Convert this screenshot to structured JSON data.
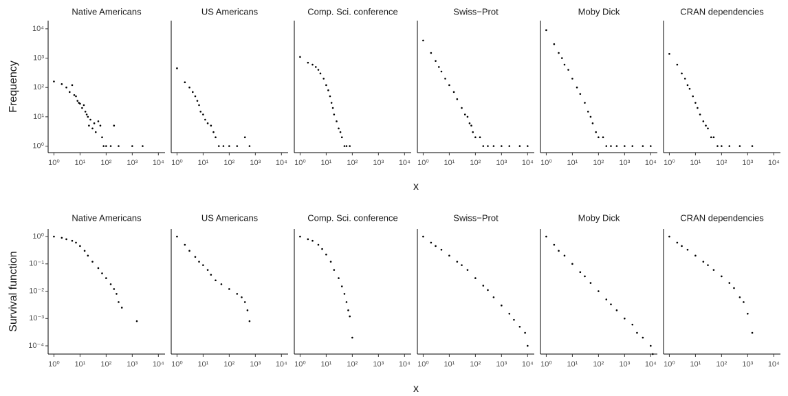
{
  "chart_data": [
    {
      "type": "scatter",
      "ylabel": "Frequency",
      "xlabel": "x",
      "log_x": true,
      "log_y": true,
      "color": "#000000",
      "xlim": [
        0.6,
        18000
      ],
      "ylim": [
        0.6,
        19000
      ],
      "xticks": [
        {
          "value": 1,
          "label": "10⁰"
        },
        {
          "value": 10,
          "label": "10¹"
        },
        {
          "value": 100,
          "label": "10²"
        },
        {
          "value": 1000,
          "label": "10³"
        },
        {
          "value": 10000,
          "label": "10⁴"
        }
      ],
      "yticks": [
        {
          "value": 1,
          "label": "10⁰"
        },
        {
          "value": 10,
          "label": "10¹"
        },
        {
          "value": 100,
          "label": "10²"
        },
        {
          "value": 1000,
          "label": "10³"
        },
        {
          "value": 10000,
          "label": "10⁴"
        }
      ],
      "panels": [
        {
          "title": "Native Americans",
          "x": [
            1,
            2,
            3,
            4,
            5,
            6,
            7,
            8,
            9,
            10,
            12,
            14,
            16,
            18,
            20,
            22,
            25,
            30,
            35,
            40,
            50,
            60,
            70,
            80,
            100,
            150,
            200,
            300,
            1000,
            2500
          ],
          "values": [
            160,
            130,
            100,
            70,
            120,
            55,
            50,
            35,
            30,
            28,
            20,
            25,
            15,
            12,
            10,
            5,
            8,
            4,
            6,
            3,
            7,
            5,
            2,
            1,
            1,
            1,
            5,
            1,
            1,
            1
          ]
        },
        {
          "title": "US Americans",
          "x": [
            1,
            2,
            3,
            4,
            5,
            6,
            7,
            8,
            10,
            12,
            15,
            20,
            25,
            30,
            40,
            60,
            100,
            200,
            400,
            600
          ],
          "values": [
            450,
            150,
            100,
            70,
            50,
            35,
            25,
            15,
            12,
            8,
            6,
            5,
            3,
            2,
            1,
            1,
            1,
            1,
            2,
            1
          ]
        },
        {
          "title": "Comp. Sci. conference",
          "x": [
            1,
            2,
            3,
            4,
            5,
            6,
            8,
            10,
            12,
            14,
            16,
            18,
            20,
            25,
            30,
            35,
            40,
            50,
            60,
            80
          ],
          "values": [
            1100,
            700,
            600,
            500,
            400,
            300,
            200,
            120,
            80,
            50,
            30,
            20,
            12,
            7,
            4,
            3,
            2,
            1,
            1,
            1
          ]
        },
        {
          "title": "Swiss−Prot",
          "x": [
            1,
            2,
            3,
            4,
            5,
            7,
            10,
            15,
            20,
            30,
            40,
            50,
            60,
            70,
            80,
            100,
            150,
            200,
            300,
            500,
            1000,
            2000,
            5000,
            10000
          ],
          "values": [
            4000,
            1500,
            800,
            500,
            350,
            200,
            120,
            70,
            40,
            20,
            12,
            10,
            6,
            5,
            3,
            2,
            2,
            1,
            1,
            1,
            1,
            1,
            1,
            1
          ]
        },
        {
          "title": "Moby Dick",
          "x": [
            1,
            2,
            3,
            4,
            5,
            7,
            10,
            15,
            20,
            30,
            40,
            50,
            60,
            80,
            100,
            150,
            200,
            300,
            500,
            1000,
            2000,
            5000,
            10000
          ],
          "values": [
            9000,
            3000,
            1500,
            1000,
            600,
            400,
            200,
            100,
            60,
            30,
            15,
            10,
            6,
            3,
            2,
            2,
            1,
            1,
            1,
            1,
            1,
            1,
            1
          ]
        },
        {
          "title": "CRAN dependencies",
          "x": [
            1,
            2,
            3,
            4,
            5,
            6,
            8,
            10,
            12,
            15,
            20,
            25,
            30,
            40,
            50,
            70,
            100,
            200,
            500,
            1500
          ],
          "values": [
            1400,
            600,
            300,
            200,
            120,
            90,
            50,
            30,
            20,
            12,
            7,
            5,
            4,
            2,
            2,
            1,
            1,
            1,
            1,
            1
          ]
        }
      ]
    },
    {
      "type": "scatter",
      "ylabel": "Survival function",
      "xlabel": "x",
      "log_x": true,
      "log_y": true,
      "color": "#000000",
      "xlim": [
        0.6,
        18000
      ],
      "ylim": [
        5e-05,
        1.9
      ],
      "xticks": [
        {
          "value": 1,
          "label": "10⁰"
        },
        {
          "value": 10,
          "label": "10¹"
        },
        {
          "value": 100,
          "label": "10²"
        },
        {
          "value": 1000,
          "label": "10³"
        },
        {
          "value": 10000,
          "label": "10⁴"
        }
      ],
      "yticks": [
        {
          "value": 1,
          "label": "10⁰"
        },
        {
          "value": 0.1,
          "label": "10⁻¹"
        },
        {
          "value": 0.01,
          "label": "10⁻²"
        },
        {
          "value": 0.001,
          "label": "10⁻³"
        },
        {
          "value": 0.0001,
          "label": "10⁻⁴"
        }
      ],
      "panels": [
        {
          "title": "Native Americans",
          "x": [
            1,
            2,
            3,
            5,
            7,
            10,
            15,
            20,
            30,
            50,
            70,
            100,
            150,
            200,
            250,
            300,
            400,
            1500
          ],
          "values": [
            1,
            0.9,
            0.8,
            0.7,
            0.6,
            0.45,
            0.3,
            0.2,
            0.12,
            0.07,
            0.045,
            0.03,
            0.018,
            0.012,
            0.008,
            0.004,
            0.0025,
            0.0008
          ]
        },
        {
          "title": "US Americans",
          "x": [
            1,
            2,
            3,
            5,
            7,
            10,
            15,
            20,
            30,
            50,
            100,
            200,
            300,
            400,
            500,
            600
          ],
          "values": [
            1,
            0.5,
            0.3,
            0.18,
            0.12,
            0.09,
            0.06,
            0.04,
            0.025,
            0.018,
            0.012,
            0.008,
            0.006,
            0.004,
            0.002,
            0.0008
          ]
        },
        {
          "title": "Comp. Sci. conference",
          "x": [
            1,
            2,
            3,
            5,
            7,
            10,
            15,
            20,
            30,
            40,
            50,
            60,
            70,
            80,
            100
          ],
          "values": [
            1,
            0.8,
            0.7,
            0.5,
            0.35,
            0.22,
            0.12,
            0.06,
            0.03,
            0.015,
            0.008,
            0.004,
            0.002,
            0.0012,
            0.0002
          ]
        },
        {
          "title": "Swiss−Prot",
          "x": [
            1,
            2,
            3,
            5,
            10,
            20,
            30,
            50,
            100,
            200,
            300,
            500,
            1000,
            2000,
            3000,
            5000,
            8000,
            10000
          ],
          "values": [
            1,
            0.6,
            0.45,
            0.33,
            0.2,
            0.12,
            0.09,
            0.06,
            0.03,
            0.016,
            0.011,
            0.006,
            0.003,
            0.0015,
            0.0009,
            0.0005,
            0.0003,
            0.0001
          ]
        },
        {
          "title": "Moby Dick",
          "x": [
            1,
            2,
            3,
            5,
            10,
            20,
            30,
            50,
            100,
            200,
            300,
            500,
            1000,
            2000,
            3000,
            5000,
            10000,
            12000
          ],
          "values": [
            1,
            0.5,
            0.3,
            0.2,
            0.1,
            0.05,
            0.035,
            0.02,
            0.01,
            0.005,
            0.0033,
            0.002,
            0.001,
            0.0006,
            0.0003,
            0.0002,
            0.0001,
            5e-05
          ]
        },
        {
          "title": "CRAN dependencies",
          "x": [
            1,
            2,
            3,
            5,
            10,
            20,
            30,
            50,
            100,
            200,
            300,
            500,
            700,
            1000,
            1500
          ],
          "values": [
            1,
            0.6,
            0.45,
            0.33,
            0.2,
            0.12,
            0.09,
            0.06,
            0.035,
            0.02,
            0.013,
            0.006,
            0.004,
            0.0015,
            0.0003
          ]
        }
      ]
    }
  ]
}
